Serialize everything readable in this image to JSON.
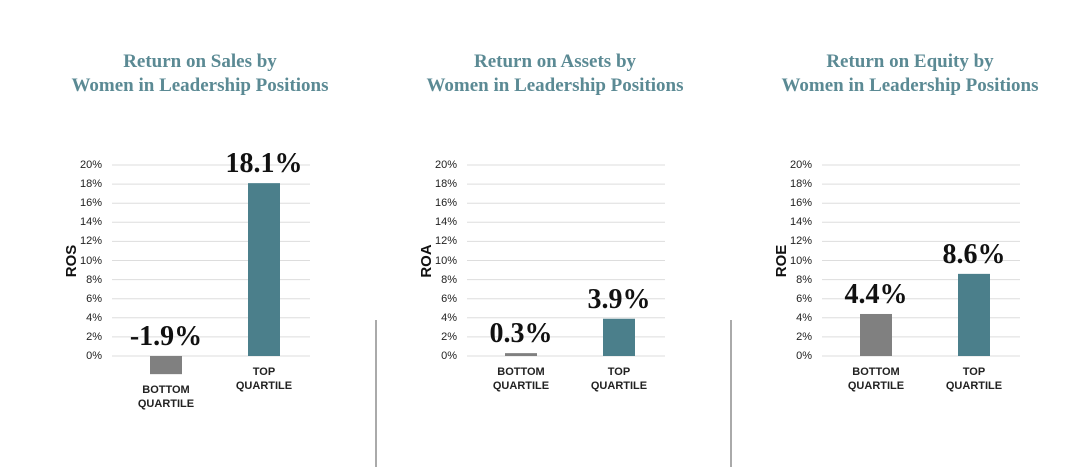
{
  "chart_data": [
    {
      "type": "bar",
      "title": "Return on Sales by\nWomen in Leadership Positions",
      "ylabel": "ROS",
      "categories": [
        "BOTTOM\nQUARTILE",
        "TOP\nQUARTILE"
      ],
      "values": [
        -1.9,
        18.1
      ],
      "value_labels": [
        "-1.9%",
        "18.1%"
      ],
      "colors": [
        "#808080",
        "#4b7f8b"
      ],
      "ylim": [
        0,
        20
      ],
      "grid": true,
      "yticks": [
        {
          "value": 0,
          "label": "0%"
        },
        {
          "value": 2,
          "label": "2%"
        },
        {
          "value": 4,
          "label": "4%"
        },
        {
          "value": 6,
          "label": "6%"
        },
        {
          "value": 8,
          "label": "8%"
        },
        {
          "value": 10,
          "label": "10%"
        },
        {
          "value": 12,
          "label": "12%"
        },
        {
          "value": 14,
          "label": "14%"
        },
        {
          "value": 16,
          "label": "16%"
        },
        {
          "value": 18,
          "label": "18%"
        },
        {
          "value": 20,
          "label": "20%"
        }
      ]
    },
    {
      "type": "bar",
      "title": "Return on Assets by\nWomen in Leadership Positions",
      "ylabel": "ROA",
      "categories": [
        "BOTTOM\nQUARTILE",
        "TOP\nQUARTILE"
      ],
      "values": [
        0.3,
        3.9
      ],
      "value_labels": [
        "0.3%",
        "3.9%"
      ],
      "colors": [
        "#808080",
        "#4b7f8b"
      ],
      "ylim": [
        0,
        20
      ],
      "grid": true,
      "yticks": [
        {
          "value": 0,
          "label": "0%"
        },
        {
          "value": 2,
          "label": "2%"
        },
        {
          "value": 4,
          "label": "4%"
        },
        {
          "value": 6,
          "label": "6%"
        },
        {
          "value": 8,
          "label": "8%"
        },
        {
          "value": 10,
          "label": "10%"
        },
        {
          "value": 12,
          "label": "12%"
        },
        {
          "value": 14,
          "label": "14%"
        },
        {
          "value": 16,
          "label": "16%"
        },
        {
          "value": 18,
          "label": "18%"
        },
        {
          "value": 20,
          "label": "20%"
        }
      ]
    },
    {
      "type": "bar",
      "title": "Return on Equity by\nWomen in Leadership Positions",
      "ylabel": "ROE",
      "categories": [
        "BOTTOM\nQUARTILE",
        "TOP\nQUARTILE"
      ],
      "values": [
        4.4,
        8.6
      ],
      "value_labels": [
        "4.4%",
        "8.6%"
      ],
      "colors": [
        "#808080",
        "#4b7f8b"
      ],
      "ylim": [
        0,
        20
      ],
      "grid": true,
      "yticks": [
        {
          "value": 0,
          "label": "0%"
        },
        {
          "value": 2,
          "label": "2%"
        },
        {
          "value": 4,
          "label": "4%"
        },
        {
          "value": 6,
          "label": "6%"
        },
        {
          "value": 8,
          "label": "8%"
        },
        {
          "value": 10,
          "label": "10%"
        },
        {
          "value": 12,
          "label": "12%"
        },
        {
          "value": 14,
          "label": "14%"
        },
        {
          "value": 16,
          "label": "16%"
        },
        {
          "value": 18,
          "label": "18%"
        },
        {
          "value": 20,
          "label": "20%"
        }
      ]
    }
  ]
}
